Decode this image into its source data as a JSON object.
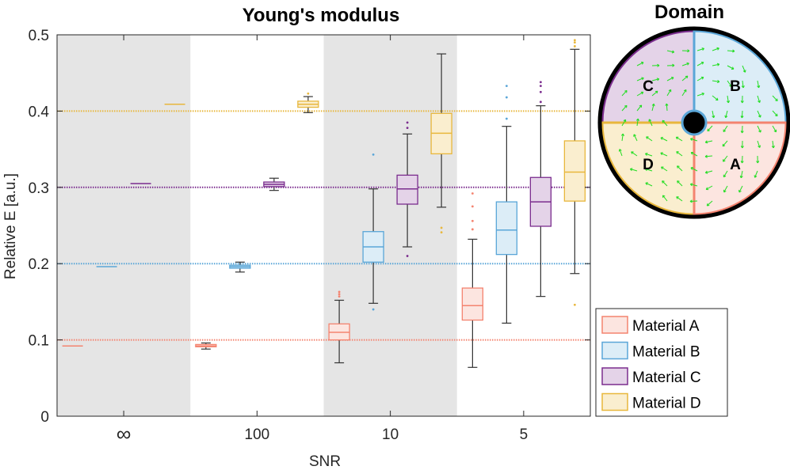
{
  "chart_data": [
    {
      "type": "box",
      "title": "Young's modulus",
      "xlabel": "SNR",
      "ylabel": "Relative E [a.u.]",
      "ylim": [
        0,
        0.5
      ],
      "yticks": [
        {
          "value": 0,
          "label": "0"
        },
        {
          "value": 0.1,
          "label": "0.1"
        },
        {
          "value": 0.2,
          "label": "0.2"
        },
        {
          "value": 0.3,
          "label": "0.3"
        },
        {
          "value": 0.4,
          "label": "0.4"
        },
        {
          "value": 0.5,
          "label": "0.5"
        }
      ],
      "categories": [
        "∞",
        "100",
        "10",
        "5"
      ],
      "shaded_categories": [
        "∞",
        "10"
      ],
      "reference_lines": [
        {
          "value": 0.1,
          "series": "Material A"
        },
        {
          "value": 0.2,
          "series": "Material B"
        },
        {
          "value": 0.3,
          "series": "Material C"
        },
        {
          "value": 0.4,
          "series": "Material D"
        }
      ],
      "legend_position": "bottom-right",
      "series": [
        {
          "name": "Material A",
          "color": "#f4836f",
          "fill": "#fce5e0",
          "boxes": [
            {
              "min": 0.092,
              "q1": 0.092,
              "median": 0.092,
              "q3": 0.092,
              "max": 0.092,
              "outliers": []
            },
            {
              "min": 0.088,
              "q1": 0.091,
              "median": 0.092,
              "q3": 0.094,
              "max": 0.096,
              "outliers": []
            },
            {
              "min": 0.07,
              "q1": 0.1,
              "median": 0.11,
              "q3": 0.121,
              "max": 0.152,
              "outliers": [
                0.157,
                0.16,
                0.163
              ]
            },
            {
              "min": 0.064,
              "q1": 0.126,
              "median": 0.145,
              "q3": 0.168,
              "max": 0.232,
              "outliers": [
                0.245,
                0.256,
                0.275,
                0.292
              ]
            }
          ]
        },
        {
          "name": "Material B",
          "color": "#5aa6d8",
          "fill": "#dcedf7",
          "boxes": [
            {
              "min": 0.196,
              "q1": 0.196,
              "median": 0.196,
              "q3": 0.196,
              "max": 0.196,
              "outliers": []
            },
            {
              "min": 0.189,
              "q1": 0.194,
              "median": 0.196,
              "q3": 0.198,
              "max": 0.202,
              "outliers": []
            },
            {
              "min": 0.148,
              "q1": 0.202,
              "median": 0.222,
              "q3": 0.242,
              "max": 0.298,
              "outliers": [
                0.14,
                0.343
              ]
            },
            {
              "min": 0.122,
              "q1": 0.212,
              "median": 0.244,
              "q3": 0.281,
              "max": 0.38,
              "outliers": [
                0.39,
                0.418,
                0.433
              ]
            }
          ]
        },
        {
          "name": "Material C",
          "color": "#7b2d8e",
          "fill": "#e4d3e8",
          "boxes": [
            {
              "min": 0.305,
              "q1": 0.305,
              "median": 0.305,
              "q3": 0.305,
              "max": 0.305,
              "outliers": []
            },
            {
              "min": 0.296,
              "q1": 0.301,
              "median": 0.304,
              "q3": 0.307,
              "max": 0.312,
              "outliers": []
            },
            {
              "min": 0.222,
              "q1": 0.278,
              "median": 0.298,
              "q3": 0.316,
              "max": 0.37,
              "outliers": [
                0.21,
                0.378,
                0.385
              ]
            },
            {
              "min": 0.157,
              "q1": 0.249,
              "median": 0.281,
              "q3": 0.313,
              "max": 0.407,
              "outliers": [
                0.412,
                0.425,
                0.433,
                0.438
              ]
            }
          ]
        },
        {
          "name": "Material D",
          "color": "#e8b73c",
          "fill": "#faeecf",
          "boxes": [
            {
              "min": 0.409,
              "q1": 0.409,
              "median": 0.409,
              "q3": 0.409,
              "max": 0.409,
              "outliers": []
            },
            {
              "min": 0.398,
              "q1": 0.405,
              "median": 0.409,
              "q3": 0.413,
              "max": 0.419,
              "outliers": [
                0.423
              ]
            },
            {
              "min": 0.274,
              "q1": 0.344,
              "median": 0.371,
              "q3": 0.397,
              "max": 0.475,
              "outliers": [
                0.241,
                0.247
              ]
            },
            {
              "min": 0.187,
              "q1": 0.282,
              "median": 0.32,
              "q3": 0.361,
              "max": 0.481,
              "outliers": [
                0.146,
                0.485,
                0.49,
                0.493
              ]
            }
          ]
        }
      ]
    },
    {
      "type": "diagram",
      "title": "Domain",
      "regions": [
        {
          "label": "C",
          "series": "Material C"
        },
        {
          "label": "B",
          "series": "Material B"
        },
        {
          "label": "D",
          "series": "Material D"
        },
        {
          "label": "A",
          "series": "Material A"
        }
      ],
      "arrow_color": "#22dd22"
    }
  ]
}
